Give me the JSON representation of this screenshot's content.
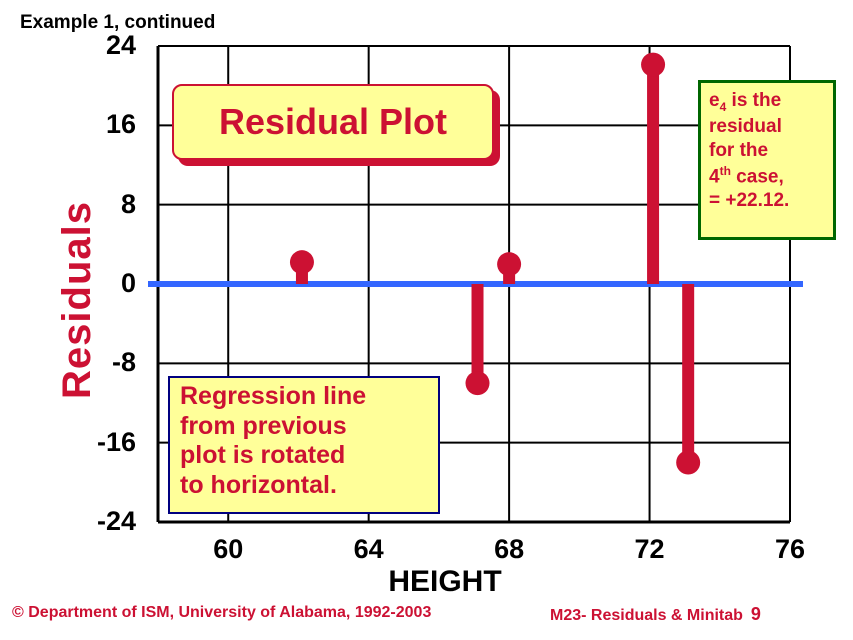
{
  "header": {
    "text": "Example 1, continued"
  },
  "chart_data": {
    "type": "scatter",
    "title": "Residual Plot",
    "xlabel": "HEIGHT",
    "ylabel": "Residuals",
    "xlim": [
      58,
      76
    ],
    "ylim": [
      -24,
      24
    ],
    "xticks": [
      "60",
      "64",
      "68",
      "72",
      "76"
    ],
    "yticks": [
      "24",
      "16",
      "8",
      "0",
      "-8",
      "-16",
      "-24"
    ],
    "grid": true,
    "points": [
      {
        "x": 62.1,
        "y": 2.2
      },
      {
        "x": 67.1,
        "y": -10.0
      },
      {
        "x": 68.0,
        "y": 2.0
      },
      {
        "x": 72.1,
        "y": 22.12
      },
      {
        "x": 73.1,
        "y": -18.0
      }
    ],
    "zero_line_color": "#3366ff",
    "residual_color": "#cc1133"
  },
  "annotations": {
    "note_lines": [
      {
        "base": "e",
        "sub": "4",
        "rest": " is the"
      },
      {
        "text": "residual"
      },
      {
        "text": "for the"
      },
      {
        "base": "4",
        "sup": "th",
        "rest": " case,"
      },
      {
        "text": "= +22.12."
      }
    ],
    "regression_lines": [
      "Regression line",
      "from previous",
      "plot is rotated",
      "to horizontal."
    ]
  },
  "footer": {
    "left": "© Department of ISM, University of Alabama, 1992-2003",
    "right": "M23- Residuals & Minitab",
    "page": "9"
  }
}
